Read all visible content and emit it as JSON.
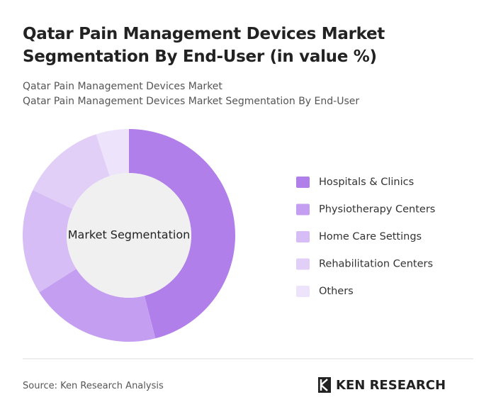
{
  "chart_data": {
    "type": "donut",
    "title": "Qatar Pain Management Devices Market Segmentation By End-User (in value %)",
    "subtitle": [
      "Qatar Pain Management Devices Market",
      "Qatar Pain Management Devices Market Segmentation By End-User"
    ],
    "center_label": "Market Segmentation",
    "categories": [
      "Hospitals & Clinics",
      "Physiotherapy Centers",
      "Home Care Settings",
      "Rehabilitation Centers",
      "Others"
    ],
    "values": [
      46,
      20,
      16,
      13,
      5
    ],
    "colors": [
      "#b07fe9",
      "#c49ef0",
      "#d6bdf5",
      "#e2cff8",
      "#ede3fb"
    ],
    "source": "Source: Ken Research Analysis",
    "logo": "KEN RESEARCH"
  }
}
